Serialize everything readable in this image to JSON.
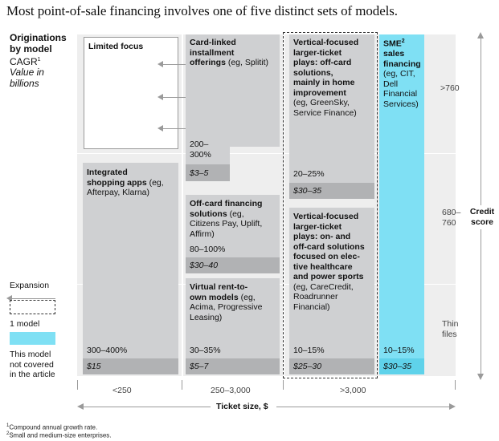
{
  "title": "Most point-of-sale financing involves one of five distinct sets of models.",
  "left_legend": {
    "heading_line1": "Originations",
    "heading_line2": "by model",
    "cagr": "CAGR",
    "cagr_sup": "1",
    "value_line1": "Value in",
    "value_line2": "billions",
    "expansion": "Expansion",
    "one_model": "1 model",
    "not_covered_line1": "This model",
    "not_covered_line2": "not covered",
    "not_covered_line3": "in the article"
  },
  "boxes": {
    "limited_focus": {
      "label": "Limited focus"
    },
    "card_linked": {
      "title_line1": "Card-linked",
      "title_line2": "installment",
      "title_line3": "offerings",
      "example": " (eg, Splitit)",
      "cagr_line1": "200–",
      "cagr_line2": "300%",
      "value": "$3–5"
    },
    "integrated_apps": {
      "title_line1": "Integrated",
      "title_line2": "shopping apps",
      "example_line1": " (eg,",
      "example_line2": "Afterpay, Klarna)",
      "cagr": "300–400%",
      "value": "$15"
    },
    "off_card": {
      "title_line1": "Off-card financing",
      "title_line2": "solutions",
      "example_line1": " (eg,",
      "example_line2": "Citizens Pay, Uplift,",
      "example_line3": "Affirm)",
      "cagr": "80–100%",
      "value": "$30–40"
    },
    "virtual_rto": {
      "title_line1": "Virtual rent-to-",
      "title_line2": "own models",
      "example_line1": " (eg,",
      "example_line2": "Acima, Progressive",
      "example_line3": "Leasing)",
      "cagr": "30–35%",
      "value": "$5–7"
    },
    "vertical_offcard": {
      "title_line1": "Vertical-focused",
      "title_line2": "larger-ticket",
      "title_line3": "plays: off-card",
      "title_line4": "solutions,",
      "title_line5": "mainly in home",
      "title_line6": "improvement",
      "example_line1": "(eg, GreenSky,",
      "example_line2": "Service Finance)",
      "cagr": "20–25%",
      "value": "$30–35"
    },
    "vertical_onoff": {
      "title_line1": "Vertical-focused",
      "title_line2": "larger-ticket",
      "title_line3": "plays: on- and",
      "title_line4": "off-card solutions",
      "title_line5": "focused on elec-",
      "title_line6": "tive healthcare",
      "title_line7": "and power sports",
      "example_line1": "(eg, CareCredit,",
      "example_line2": "Roadrunner",
      "example_line3": "Financial)",
      "cagr": "10–15%",
      "value": "$25–30"
    },
    "sme": {
      "title": "SME",
      "title_sup": "2",
      "title_line2": "sales",
      "title_line3": "financing",
      "example_line1": "(eg, CIT,",
      "example_line2": "Dell",
      "example_line3": "Financial",
      "example_line4": "Services)",
      "cagr": "10–15%",
      "value": "$30–35"
    }
  },
  "right_axis": {
    "band_top": ">760",
    "band_mid_line1": "680–",
    "band_mid_line2": "760",
    "band_bottom_line1": "Thin",
    "band_bottom_line2": "files",
    "label_line1": "Credit",
    "label_line2": "score"
  },
  "bottom_axis": {
    "band_left": "<250",
    "band_mid": "250–3,000",
    "band_right": ">3,000",
    "label": "Ticket size, $"
  },
  "footnotes": {
    "note1": "Compound annual growth rate.",
    "note1_sup": "1",
    "note2": "Small and medium-size enterprises.",
    "note2_sup": "2"
  },
  "colors": {
    "box_gray": "#cfd0d2",
    "value_strip": "#b1b2b4",
    "not_covered": "#7fe0f4",
    "background_grid": "#eeeeee"
  }
}
